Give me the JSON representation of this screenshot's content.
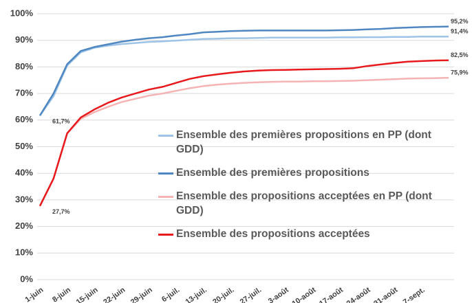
{
  "chart_data": {
    "type": "line",
    "categories": [
      "1-juin",
      null,
      "8-juin",
      null,
      "15-juin",
      null,
      "22-juin",
      null,
      "29-juin",
      null,
      "6-juil.",
      null,
      "13-juil.",
      null,
      "20-juil.",
      null,
      "27-juil.",
      null,
      "3-août",
      null,
      "10-août",
      null,
      "17-août",
      null,
      "24-août",
      null,
      "31-août",
      null,
      "7-sept.",
      null,
      null
    ],
    "series": [
      {
        "name": "Ensemble des premières propositions en PP (dont GDD)",
        "color": "#9dc3e6",
        "values": [
          61.7,
          69,
          80.5,
          85.5,
          87.2,
          88,
          88.6,
          89,
          89.4,
          89.6,
          89.9,
          90.2,
          90.5,
          90.6,
          90.8,
          90.8,
          90.9,
          91,
          91,
          91,
          91,
          91,
          91.1,
          91.1,
          91.2,
          91.2,
          91.3,
          91.3,
          91.4,
          91.4,
          91.4
        ],
        "value_labels": [
          null,
          null,
          null,
          null,
          null,
          null,
          null,
          null,
          null,
          null,
          null,
          null,
          null,
          null,
          null,
          null,
          null,
          null,
          null,
          null,
          null,
          null,
          null,
          null,
          null,
          null,
          null,
          null,
          null,
          null,
          "91,4%"
        ]
      },
      {
        "name": "Ensemble des premières propositions",
        "color": "#4f87c2",
        "values": [
          61.7,
          70,
          81,
          86,
          87.5,
          88.5,
          89.5,
          90.2,
          90.8,
          91.2,
          91.8,
          92.3,
          93,
          93.2,
          93.5,
          93.6,
          93.7,
          93.7,
          93.7,
          93.7,
          93.7,
          93.7,
          93.8,
          93.9,
          94.1,
          94.3,
          94.6,
          94.8,
          95.0,
          95.1,
          95.2
        ],
        "value_labels": [
          "61,7%",
          null,
          null,
          null,
          null,
          null,
          null,
          null,
          null,
          null,
          null,
          null,
          null,
          null,
          null,
          null,
          null,
          null,
          null,
          null,
          null,
          null,
          null,
          null,
          null,
          null,
          null,
          null,
          null,
          null,
          "95,2%"
        ]
      },
      {
        "name": "Ensemble des propositions acceptées en PP (dont GDD)",
        "color": "#f5b3b3",
        "values": [
          27.7,
          38,
          55,
          60.5,
          63,
          65,
          66.8,
          68,
          69.2,
          70,
          71,
          72,
          72.8,
          73.3,
          73.7,
          74,
          74.2,
          74.4,
          74.5,
          74.5,
          74.6,
          74.6,
          74.7,
          74.8,
          75,
          75.2,
          75.4,
          75.6,
          75.7,
          75.8,
          75.9
        ],
        "value_labels": [
          null,
          null,
          null,
          null,
          null,
          null,
          null,
          null,
          null,
          null,
          null,
          null,
          null,
          null,
          null,
          null,
          null,
          null,
          null,
          null,
          null,
          null,
          null,
          null,
          null,
          null,
          null,
          null,
          null,
          null,
          "75,9%"
        ]
      },
      {
        "name": "Ensemble des propositions acceptées",
        "color": "#e8191c",
        "values": [
          27.7,
          38,
          55,
          61,
          64,
          66.5,
          68.5,
          70,
          71.5,
          72.5,
          74,
          75.5,
          76.5,
          77.2,
          77.8,
          78.3,
          78.6,
          78.8,
          78.9,
          79,
          79.1,
          79.2,
          79.3,
          79.5,
          80.3,
          80.9,
          81.5,
          82,
          82.2,
          82.4,
          82.5
        ],
        "value_labels": [
          "27,7%",
          null,
          null,
          null,
          null,
          null,
          null,
          null,
          null,
          null,
          null,
          null,
          null,
          null,
          null,
          null,
          null,
          null,
          null,
          null,
          null,
          null,
          null,
          null,
          null,
          null,
          null,
          null,
          null,
          null,
          "82,5%"
        ]
      }
    ],
    "ylim": [
      0,
      100
    ],
    "yticks": [
      {
        "value": 0,
        "label": "0%"
      },
      {
        "value": 10,
        "label": "10%"
      },
      {
        "value": 20,
        "label": "20%"
      },
      {
        "value": 30,
        "label": "30%"
      },
      {
        "value": 40,
        "label": "40%"
      },
      {
        "value": 50,
        "label": "50%"
      },
      {
        "value": 60,
        "label": "60%"
      },
      {
        "value": 70,
        "label": "70%"
      },
      {
        "value": 80,
        "label": "80%"
      },
      {
        "value": 90,
        "label": "90%"
      },
      {
        "value": 100,
        "label": "100%"
      }
    ],
    "grid": true
  }
}
